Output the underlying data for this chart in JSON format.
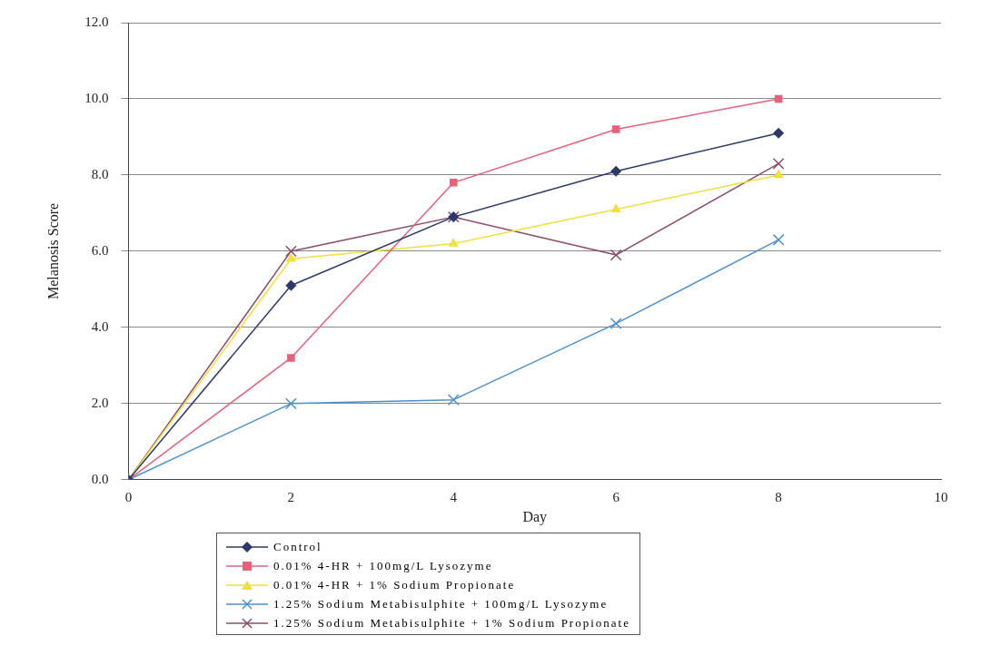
{
  "chart_data": {
    "type": "line",
    "xlabel": "Day",
    "ylabel": "Melanosis Score",
    "x": [
      0,
      2,
      4,
      6,
      8
    ],
    "xlim": [
      0,
      10
    ],
    "xticks": [
      0,
      2,
      4,
      6,
      8,
      10
    ],
    "ylim": [
      0,
      12
    ],
    "yticks": [
      {
        "value": 0,
        "label": "0.0"
      },
      {
        "value": 2,
        "label": "2.0"
      },
      {
        "value": 4,
        "label": "4.0"
      },
      {
        "value": 6,
        "label": "6.0"
      },
      {
        "value": 8,
        "label": "8.0"
      },
      {
        "value": 10,
        "label": "10.0"
      },
      {
        "value": 12,
        "label": "12.0"
      }
    ],
    "grid": "y",
    "legend": "bottom",
    "line_style": "solid",
    "series": [
      {
        "name": "Control",
        "color": "#2b3a6b",
        "marker": "diamond",
        "values": [
          0,
          5.1,
          6.9,
          8.1,
          9.1
        ]
      },
      {
        "name": "0.01% 4-HR + 100mg/L Lysozyme",
        "color": "#e8607a",
        "marker": "square",
        "values": [
          0,
          3.2,
          7.8,
          9.2,
          10.0
        ]
      },
      {
        "name": "0.01% 4-HR + 1% Sodium Propionate",
        "color": "#f0e040",
        "marker": "triangle",
        "values": [
          0,
          5.8,
          6.2,
          7.1,
          8.0
        ]
      },
      {
        "name": "1.25% Sodium Metabisulphite + 100mg/L Lysozyme",
        "color": "#4a90d0",
        "marker": "cross",
        "values": [
          0,
          2.0,
          2.1,
          4.1,
          6.3
        ]
      },
      {
        "name": "1.25% Sodium Metabisulphite + 1% Sodium Propionate",
        "color": "#8b4a6b",
        "marker": "cross",
        "values": [
          0,
          6.0,
          6.9,
          5.9,
          8.3
        ]
      }
    ]
  }
}
